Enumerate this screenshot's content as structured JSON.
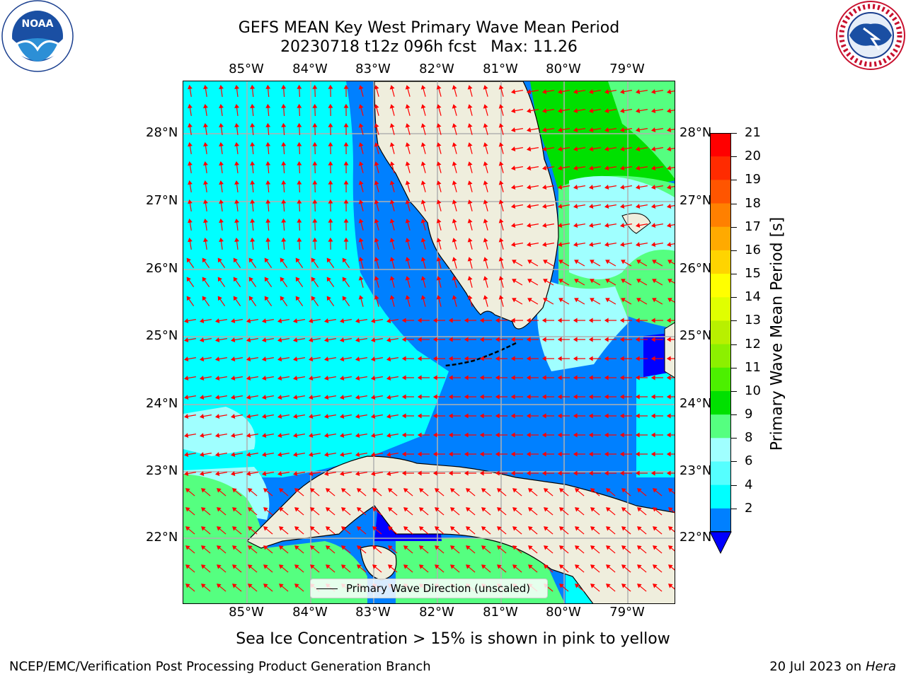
{
  "title_line1": "GEFS MEAN Key West Primary Wave Mean Period",
  "title_line2_date": "20230718 t12z 096h fcst",
  "title_line2_max": "Max: 11.26",
  "lon_labels": [
    "85°W",
    "84°W",
    "83°W",
    "82°W",
    "81°W",
    "80°W",
    "79°W"
  ],
  "lat_labels": [
    "28°N",
    "27°N",
    "26°N",
    "25°N",
    "24°N",
    "23°N",
    "22°N"
  ],
  "legend_label": "Primary Wave Direction (unscaled)",
  "colorbar": {
    "label": "Primary Wave Mean Period [s]",
    "ticks": [
      "21",
      "20",
      "19",
      "18",
      "17",
      "16",
      "15",
      "14",
      "13",
      "12",
      "11",
      "10",
      "9",
      "8",
      "6",
      "4",
      "2"
    ],
    "colors": [
      "#ff0000",
      "#ff2b00",
      "#ff5500",
      "#ff8000",
      "#ffaa00",
      "#ffd400",
      "#ffff00",
      "#e0ff00",
      "#b8f000",
      "#8cf000",
      "#4cf000",
      "#00e000",
      "#55ff80",
      "#a0ffff",
      "#55ffff",
      "#00ffff",
      "#0080ff"
    ],
    "under_color": "#0000ff"
  },
  "field_colors": {
    "land": "#efeedd",
    "cyan": "#00ffff",
    "light_cyan": "#a0ffff",
    "blue": "#0080ff",
    "deep_blue": "#0000ff",
    "green": "#00e000",
    "light_green": "#55ff80",
    "arrow": "#ff0000",
    "grid": "#b0b0b0"
  },
  "sea_ice_note": "Sea Ice Concentration > 15% is shown in pink to yellow",
  "footer_left": "NCEP/EMC/Verification Post Processing Product Generation Branch",
  "footer_date": "20 Jul 2023 on",
  "footer_host": "Hera",
  "logos": {
    "left_text": "NOAA",
    "right_text": "NATIONAL WEATHER SERVICE"
  }
}
